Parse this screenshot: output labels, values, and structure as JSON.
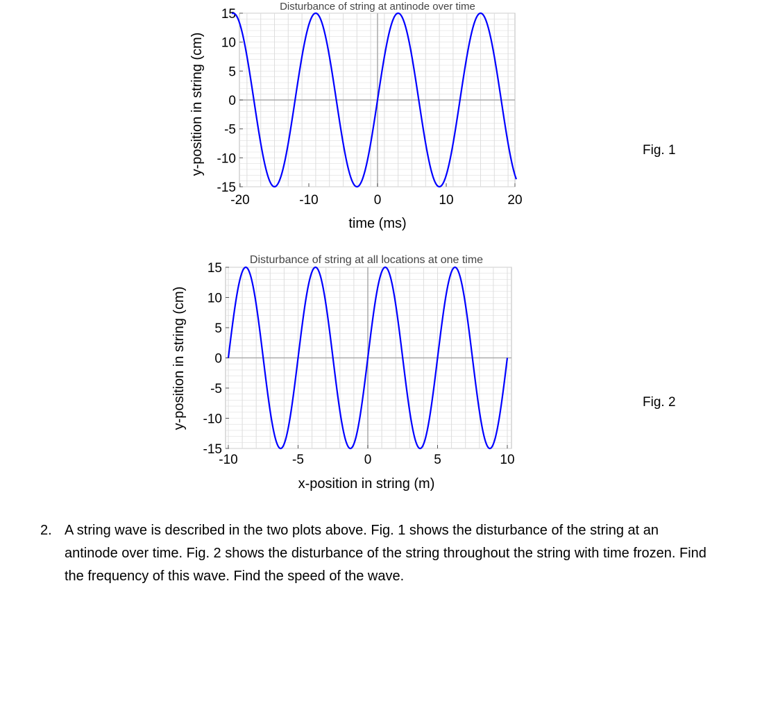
{
  "chart_data": [
    {
      "type": "line",
      "title": "Disturbance of string at antinode over time",
      "xlabel": "time (ms)",
      "ylabel": "y-position in string (cm)",
      "xlim": [
        -20,
        20
      ],
      "ylim": [
        -15,
        15
      ],
      "xticks": [
        -20,
        -10,
        0,
        10,
        20
      ],
      "yticks": [
        15,
        10,
        5,
        0,
        -5,
        -10,
        -15
      ],
      "xtick_labels": [
        "-20",
        "-10",
        "0",
        "10",
        "20"
      ],
      "ytick_labels": [
        "15",
        "10",
        "5",
        "0",
        "-5",
        "-10",
        "-15"
      ],
      "grid": true,
      "series": [
        {
          "function": "y = 15*sin(2*pi*x/12)",
          "amplitude": 15,
          "period": 12,
          "x": [
            -21,
            -18,
            -15,
            -12,
            -9,
            -6,
            -3,
            0,
            3,
            6,
            9,
            12,
            15,
            18,
            21
          ],
          "values": [
            15,
            0,
            -15,
            0,
            15,
            0,
            -15,
            0,
            15,
            0,
            -15,
            0,
            15,
            0,
            -15
          ]
        }
      ]
    },
    {
      "type": "line",
      "title": "Disturbance of string at all locations at one time",
      "xlabel": "x-position in string (m)",
      "ylabel": "y-position in string (cm)",
      "xlim": [
        -10,
        10
      ],
      "ylim": [
        -15,
        15
      ],
      "xticks": [
        -10,
        -5,
        0,
        5,
        10
      ],
      "yticks": [
        15,
        10,
        5,
        0,
        -5,
        -10,
        -15
      ],
      "xtick_labels": [
        "-10",
        "-5",
        "0",
        "5",
        "10"
      ],
      "ytick_labels": [
        "15",
        "10",
        "5",
        "0",
        "-5",
        "-10",
        "-15"
      ],
      "grid": true,
      "series": [
        {
          "function": "y = 15*sin(2*pi*x/5)",
          "amplitude": 15,
          "period": 5,
          "x": [
            -10,
            -8.75,
            -7.5,
            -6.25,
            -5,
            -3.75,
            -2.5,
            -1.25,
            0,
            1.25,
            2.5,
            3.75,
            5,
            6.25,
            7.5,
            8.75,
            10
          ],
          "values": [
            0,
            15,
            0,
            -15,
            0,
            15,
            0,
            -15,
            0,
            15,
            0,
            -15,
            0,
            15,
            0,
            -15,
            0
          ]
        }
      ]
    }
  ],
  "figures": {
    "fig1_label": "Fig. 1",
    "fig2_label": "Fig. 2"
  },
  "colors": {
    "curve": "#0000ff",
    "grid": "#dddddd",
    "axis": "#aaaaaa"
  },
  "problem": {
    "number": "2.",
    "text": "A string wave is described in the two plots above. Fig. 1 shows the disturbance of the string at an antinode over time. Fig. 2 shows the disturbance of the string throughout the string with time frozen. Find the frequency of this wave. Find the speed of the wave."
  }
}
